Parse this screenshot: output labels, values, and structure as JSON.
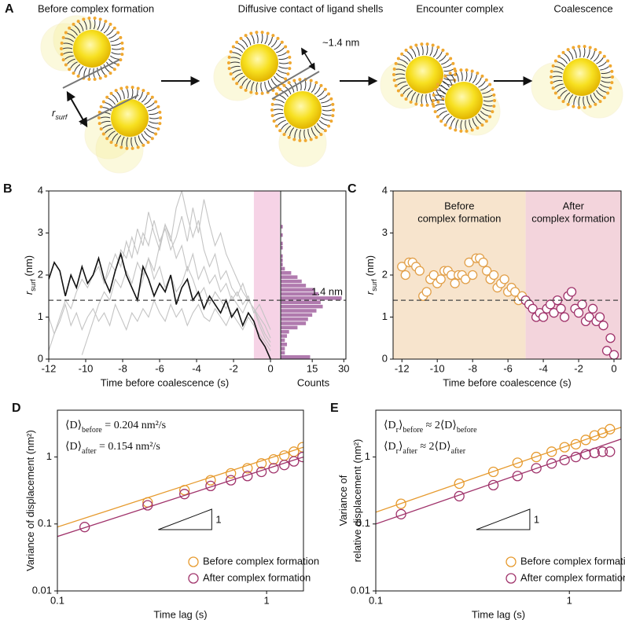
{
  "diagram": {
    "panel": "A",
    "steps": [
      "Before complex formation",
      "Diffusive contact of ligand shells",
      "Encounter complex",
      "Coalescence"
    ],
    "gap_label": "~1.4 nm",
    "distance_label": "r",
    "distance_label_sub": "surf"
  },
  "chart_data": [
    {
      "type": "line",
      "panel": "B",
      "xlabel": "Time before coalescence (s)",
      "ylabel": [
        [
          {
            "text": "r",
            "italic": true
          },
          {
            "text": "surf",
            "sub": true
          },
          {
            "text": " (nm)"
          }
        ]
      ],
      "x": [
        -12,
        -11.7,
        -11.4,
        -11.1,
        -10.8,
        -10.5,
        -10.2,
        -9.9,
        -9.6,
        -9.3,
        -9,
        -8.7,
        -8.4,
        -8.1,
        -7.8,
        -7.5,
        -7.2,
        -6.9,
        -6.6,
        -6.3,
        -6,
        -5.7,
        -5.4,
        -5.1,
        -4.8,
        -4.5,
        -4.2,
        -3.9,
        -3.6,
        -3.3,
        -3,
        -2.7,
        -2.4,
        -2.1,
        -1.8,
        -1.5,
        -1.2,
        -0.9,
        -0.6,
        -0.3,
        0
      ],
      "series": [
        {
          "color": "#c4c4c4",
          "values": [
            0.2,
            0.6,
            1.0,
            1.4,
            1.2,
            1.6,
            1.9,
            1.7,
            2.0,
            2.2,
            1.8,
            2.3,
            2.1,
            2.6,
            2.4,
            2.9,
            2.5,
            3.0,
            2.7,
            3.3,
            2.8,
            3.1,
            2.6,
            2.9,
            3.4,
            2.8,
            3.6,
            3.0,
            3.8,
            3.2,
            2.7,
            3.0,
            2.5,
            2.2,
            1.9,
            1.6,
            1.4,
            1.2,
            0.8,
            0.5,
            0.3
          ]
        },
        {
          "color": "#c4c4c4",
          "values": [
            1.0,
            0.6,
            0.9,
            1.3,
            0.8,
            1.1,
            0.7,
            1.0,
            1.2,
            0.9,
            1.1,
            0.8,
            1.3,
            1.0,
            0.7,
            1.1,
            0.9,
            1.2,
            1.0,
            1.4,
            1.1,
            0.9,
            1.3,
            1.0,
            1.2,
            0.8,
            1.1,
            1.3,
            1.0,
            0.9,
            1.2,
            1.0,
            0.8,
            1.1,
            0.9,
            0.7,
            1.0,
            0.8,
            0.6,
            0.4,
            0.2
          ]
        },
        {
          "color": "#c4c4c4",
          "values": [
            null,
            null,
            null,
            null,
            null,
            null,
            null,
            null,
            null,
            null,
            1.8,
            2.1,
            2.5,
            2.2,
            2.8,
            2.4,
            3.1,
            2.7,
            3.5,
            3.0,
            2.6,
            3.2,
            2.9,
            2.4,
            2.7,
            2.1,
            2.5,
            1.9,
            2.2,
            1.8,
            2.0,
            1.6,
            1.8,
            1.4,
            1.6,
            1.3,
            1.5,
            1.1,
            1.3,
            1.0,
            0.7
          ]
        },
        {
          "color": "#c4c4c4",
          "values": [
            null,
            null,
            null,
            null,
            null,
            null,
            null,
            null,
            null,
            null,
            null,
            null,
            null,
            null,
            null,
            null,
            1.5,
            1.9,
            2.4,
            2.1,
            2.7,
            3.2,
            2.8,
            3.6,
            4.0,
            3.4,
            2.9,
            3.3,
            2.6,
            2.2,
            2.5,
            1.9,
            2.1,
            1.7,
            1.5,
            1.8,
            1.4,
            1.2,
            0.9,
            0.6,
            0.4
          ]
        },
        {
          "color": "#c4c4c4",
          "values": [
            null,
            null,
            null,
            null,
            null,
            null,
            0.1,
            0.5,
            0.9,
            1.3,
            1.6,
            1.4,
            1.9,
            1.7,
            2.1,
            1.8,
            2.3,
            2.0,
            2.4,
            1.9,
            2.2,
            1.7,
            2.0,
            1.6,
            1.8,
            2.2,
            1.9,
            1.5,
            1.7,
            1.3,
            1.6,
            1.4,
            1.2,
            1.5,
            1.3,
            1.1,
            1.4,
            1.2,
            1.0,
            0.8,
            0.5
          ]
        },
        {
          "color": "#111111",
          "values": [
            1.9,
            2.3,
            2.1,
            1.5,
            2.0,
            1.7,
            2.2,
            1.8,
            2.0,
            2.4,
            1.9,
            1.6,
            2.1,
            2.5,
            2.0,
            1.7,
            1.4,
            2.2,
            1.9,
            1.5,
            1.8,
            1.6,
            2.0,
            1.3,
            1.7,
            1.9,
            1.4,
            1.6,
            1.2,
            1.5,
            1.3,
            1.1,
            1.4,
            1.0,
            1.2,
            0.8,
            1.1,
            0.9,
            0.5,
            0.3,
            0.0
          ]
        }
      ],
      "xlim": [
        -12,
        0.55
      ],
      "ylim": [
        0,
        4
      ],
      "xticks": [
        -12,
        -10,
        -8,
        -6,
        -4,
        -2,
        0
      ],
      "yticks": [
        0,
        1,
        2,
        3,
        4
      ],
      "highlight": [
        -0.9,
        0.5
      ],
      "highlight_color": "#f6d3e6",
      "hline": 1.4
    },
    {
      "type": "histogram",
      "orientation": "horizontal",
      "xlabel": "Counts",
      "bins": [
        0,
        0.1,
        0.2,
        0.3,
        0.4,
        0.5,
        0.6,
        0.7,
        0.8,
        0.9,
        1,
        1.1,
        1.2,
        1.3,
        1.4,
        1.5,
        1.6,
        1.7,
        1.8,
        1.9,
        2,
        2.1,
        2.2,
        2.3,
        2.4,
        2.5,
        2.6,
        2.7,
        2.8,
        2.9,
        3,
        3.1,
        3.2
      ],
      "values": [
        14,
        2,
        2,
        3,
        2,
        3,
        4,
        8,
        12,
        13,
        15,
        17,
        20,
        19,
        29,
        18,
        16,
        12,
        10,
        8,
        5,
        2,
        1,
        1,
        1,
        0,
        1,
        1,
        0,
        1,
        0,
        1
      ],
      "color": "#b07aae",
      "xlim": [
        0,
        31
      ],
      "xticks": [
        15,
        30
      ],
      "ylim": [
        0,
        4
      ],
      "hline": 1.4,
      "hline_label": "1.4 nm"
    },
    {
      "type": "scatter",
      "panel": "C",
      "xlabel": "Time before coalescence (s)",
      "ylabel": [
        [
          {
            "text": "r",
            "italic": true
          },
          {
            "text": "surf",
            "sub": true
          },
          {
            "text": " (nm)"
          }
        ]
      ],
      "xlim": [
        -12.5,
        0.4
      ],
      "ylim": [
        0,
        4
      ],
      "xticks": [
        -12,
        -10,
        -8,
        -6,
        -4,
        -2,
        0
      ],
      "yticks": [
        0,
        1,
        2,
        3,
        4
      ],
      "hline": 1.4,
      "regions": [
        {
          "label": [
            "Before",
            "complex formation"
          ],
          "range": [
            -12.5,
            -5
          ],
          "color": "#f7e4cd"
        },
        {
          "label": [
            "After",
            "complex formation"
          ],
          "range": [
            -5,
            0.4
          ],
          "color": "#f3d4dc"
        }
      ],
      "series": [
        {
          "color": "#e2a04a",
          "x": [
            -12,
            -11.8,
            -11.6,
            -11.4,
            -11.2,
            -11,
            -10.8,
            -10.6,
            -10.4,
            -10.2,
            -10,
            -9.8,
            -9.6,
            -9.4,
            -9.2,
            -9,
            -8.8,
            -8.6,
            -8.4,
            -8.2,
            -8,
            -7.8,
            -7.6,
            -7.4,
            -7.2,
            -7,
            -6.8,
            -6.6,
            -6.4,
            -6.2,
            -6,
            -5.8,
            -5.6,
            -5.4,
            -5.2
          ],
          "values": [
            2.2,
            2.0,
            2.3,
            2.3,
            2.2,
            2.1,
            1.5,
            1.6,
            1.9,
            2.0,
            1.8,
            1.9,
            2.1,
            2.1,
            2.0,
            1.8,
            2.0,
            2.0,
            1.9,
            2.3,
            2.0,
            2.4,
            2.4,
            2.3,
            2.1,
            1.9,
            2.0,
            1.7,
            1.8,
            1.9,
            1.6,
            1.7,
            1.6,
            1.4,
            1.5
          ]
        },
        {
          "color": "#a0336b",
          "x": [
            -5,
            -4.8,
            -4.6,
            -4.4,
            -4.2,
            -4,
            -3.8,
            -3.6,
            -3.4,
            -3.2,
            -3,
            -2.8,
            -2.6,
            -2.4,
            -2.2,
            -2,
            -1.8,
            -1.6,
            -1.4,
            -1.2,
            -1,
            -0.8,
            -0.6,
            -0.4,
            -0.2,
            0
          ],
          "values": [
            1.4,
            1.3,
            1.2,
            1.0,
            1.1,
            1.0,
            1.2,
            1.3,
            1.1,
            1.4,
            1.2,
            1.0,
            1.5,
            1.6,
            1.2,
            1.1,
            1.3,
            0.9,
            1.0,
            1.2,
            0.9,
            1.0,
            0.8,
            0.2,
            0.5,
            0.1
          ]
        }
      ]
    },
    {
      "type": "scatter",
      "panel": "D",
      "log": true,
      "xlabel": "Time lag (s)",
      "ylabel": [
        [
          {
            "text": "Variance of displacement (nm²)"
          }
        ]
      ],
      "xlim": [
        0.1,
        1.5
      ],
      "ylim": [
        0.01,
        5
      ],
      "xticks": [
        0.1,
        1
      ],
      "yticks": [
        0.01,
        0.1,
        1
      ],
      "legend": "lower right",
      "slope_label": "1",
      "annotation": [
        [
          {
            "text": "⟨D⟩"
          },
          {
            "text": "before",
            "sub": true
          },
          {
            "text": " = 0.204 nm²/s"
          }
        ],
        [
          {
            "text": "⟨D⟩"
          },
          {
            "text": "after",
            "sub": true
          },
          {
            "text": " = 0.154 nm²/s"
          }
        ]
      ],
      "series": [
        {
          "name": "Before complex formation",
          "color": "#e69a2e",
          "x": [
            0.27,
            0.405,
            0.54,
            0.675,
            0.81,
            0.945,
            1.08,
            1.215,
            1.35,
            1.485
          ],
          "values": [
            0.21,
            0.32,
            0.45,
            0.57,
            0.68,
            0.8,
            0.92,
            1.05,
            1.2,
            1.4
          ],
          "fit_x": [
            0.1,
            1.5
          ],
          "fit_values": [
            0.09,
            1.4
          ]
        },
        {
          "name": "After complex formation",
          "color": "#a0336b",
          "x": [
            0.135,
            0.27,
            0.405,
            0.54,
            0.675,
            0.81,
            0.945,
            1.08,
            1.215,
            1.35,
            1.485
          ],
          "values": [
            0.09,
            0.19,
            0.28,
            0.37,
            0.45,
            0.52,
            0.6,
            0.68,
            0.76,
            0.86,
            1.0
          ],
          "fit_x": [
            0.1,
            1.5
          ],
          "fit_values": [
            0.065,
            1.0
          ]
        }
      ]
    },
    {
      "type": "scatter",
      "panel": "E",
      "log": true,
      "xlabel": "Time lag (s)",
      "ylabel": [
        [
          {
            "text": "Variance of"
          }
        ],
        [
          {
            "text": "relative displacement (nm²)"
          }
        ]
      ],
      "xlim": [
        0.1,
        1.85
      ],
      "ylim": [
        0.01,
        5
      ],
      "xticks": [
        0.1,
        1
      ],
      "yticks": [
        0.01,
        0.1,
        1
      ],
      "legend": "lower right",
      "slope_label": "1",
      "annotation": [
        [
          {
            "text": "⟨D"
          },
          {
            "text": "r",
            "sub": true
          },
          {
            "text": "⟩"
          },
          {
            "text": "before",
            "sub": true
          },
          {
            "text": " ≈ 2⟨D⟩"
          },
          {
            "text": "before",
            "sub": true
          }
        ],
        [
          {
            "text": "⟨D"
          },
          {
            "text": "r",
            "sub": true
          },
          {
            "text": "⟩"
          },
          {
            "text": "after",
            "sub": true
          },
          {
            "text": " ≈ 2⟨D⟩"
          },
          {
            "text": "after",
            "sub": true
          }
        ]
      ],
      "series": [
        {
          "name": "Before complex formation",
          "color": "#e69a2e",
          "x": [
            0.135,
            0.27,
            0.405,
            0.54,
            0.675,
            0.81,
            0.945,
            1.08,
            1.215,
            1.35,
            1.485,
            1.62
          ],
          "values": [
            0.2,
            0.4,
            0.6,
            0.82,
            1.0,
            1.2,
            1.4,
            1.55,
            1.8,
            2.1,
            2.3,
            2.6
          ],
          "fit_x": [
            0.1,
            1.85
          ],
          "fit_values": [
            0.15,
            2.78
          ]
        },
        {
          "name": "After complex formation",
          "color": "#a0336b",
          "x": [
            0.135,
            0.27,
            0.405,
            0.54,
            0.675,
            0.81,
            0.945,
            1.08,
            1.215,
            1.35,
            1.485,
            1.62
          ],
          "values": [
            0.14,
            0.26,
            0.38,
            0.52,
            0.68,
            0.8,
            0.9,
            1.0,
            1.1,
            1.15,
            1.2,
            1.2
          ],
          "fit_x": [
            0.1,
            1.85
          ],
          "fit_values": [
            0.1,
            1.85
          ]
        }
      ]
    }
  ]
}
